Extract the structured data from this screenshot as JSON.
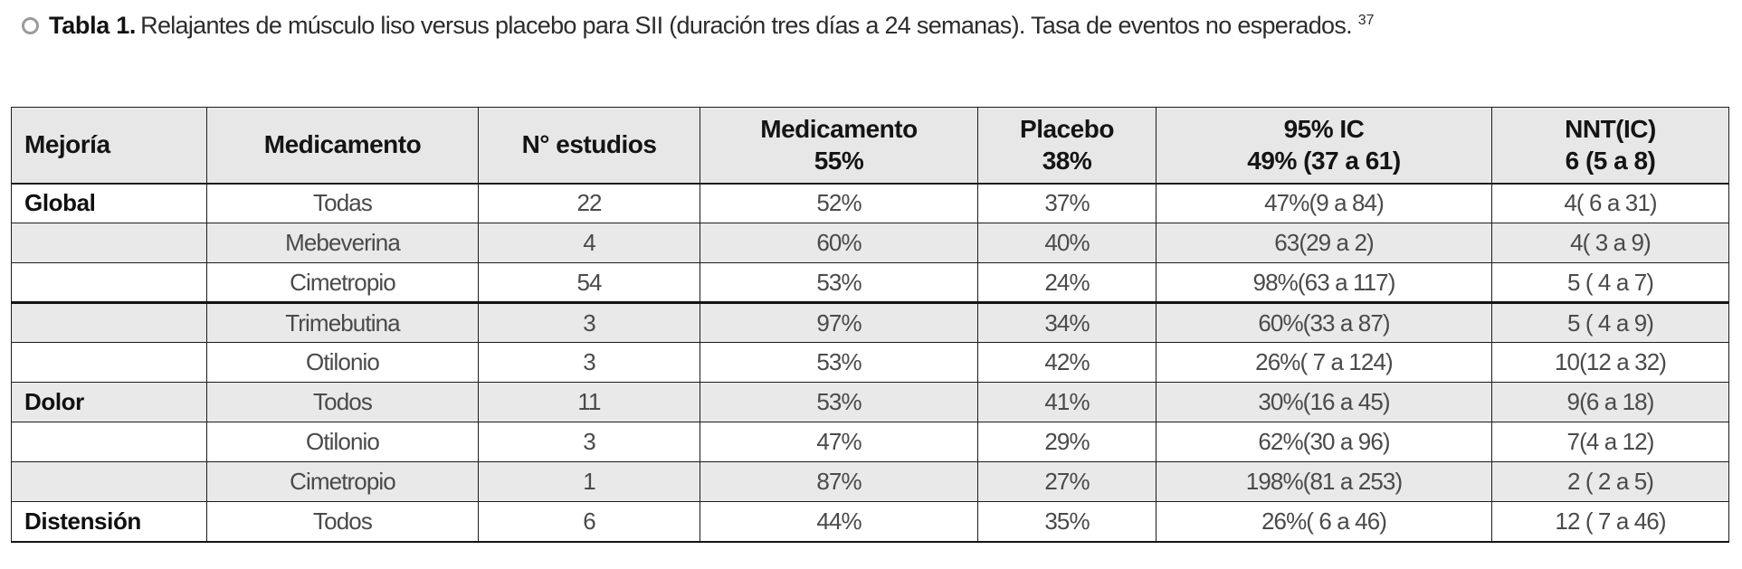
{
  "caption": {
    "icon": "circle-outline-icon",
    "label": "Tabla 1.",
    "text": "Relajantes de músculo liso versus placebo para SII (duración tres días a 24 semanas). Tasa de eventos no esperados.",
    "reference": "37"
  },
  "table": {
    "field_order": [
      "mejoria",
      "medicamento",
      "n_estudios",
      "medicamento_pct",
      "placebo_pct",
      "ic_95",
      "nnt_ic"
    ],
    "columns": [
      {
        "label": "Mejoría",
        "sub": ""
      },
      {
        "label": "Medicamento",
        "sub": ""
      },
      {
        "label": "N° estudios",
        "sub": ""
      },
      {
        "label": "Medicamento",
        "sub": "55%"
      },
      {
        "label": "Placebo",
        "sub": "38%"
      },
      {
        "label": "95% IC",
        "sub": "49% (37 a 61)"
      },
      {
        "label": "NNT(IC)",
        "sub": "6 (5 a 8)"
      }
    ],
    "rows": [
      {
        "mejoria": "Global",
        "medicamento": "Todas",
        "n_estudios": "22",
        "medicamento_pct": "52%",
        "placebo_pct": "37%",
        "ic_95": "47%(9 a 84)",
        "nnt_ic": "4( 6 a 31)",
        "shaded": false,
        "thick_bottom": false
      },
      {
        "mejoria": "",
        "medicamento": "Mebeverina",
        "n_estudios": "4",
        "medicamento_pct": "60%",
        "placebo_pct": "40%",
        "ic_95": "63(29 a 2)",
        "nnt_ic": "4( 3 a 9)",
        "shaded": true,
        "thick_bottom": false
      },
      {
        "mejoria": "",
        "medicamento": "Cimetropio",
        "n_estudios": "54",
        "medicamento_pct": "53%",
        "placebo_pct": "24%",
        "ic_95": "98%(63 a 117)",
        "nnt_ic": "5 ( 4 a 7)",
        "shaded": false,
        "thick_bottom": true
      },
      {
        "mejoria": "",
        "medicamento": "Trimebutina",
        "n_estudios": "3",
        "medicamento_pct": "97%",
        "placebo_pct": "34%",
        "ic_95": "60%(33 a 87)",
        "nnt_ic": "5 ( 4 a 9)",
        "shaded": true,
        "thick_bottom": false
      },
      {
        "mejoria": "",
        "medicamento": "Otilonio",
        "n_estudios": "3",
        "medicamento_pct": "53%",
        "placebo_pct": "42%",
        "ic_95": "26%( 7 a 124)",
        "nnt_ic": "10(12 a 32)",
        "shaded": false,
        "thick_bottom": false
      },
      {
        "mejoria": "Dolor",
        "medicamento": "Todos",
        "n_estudios": "11",
        "medicamento_pct": "53%",
        "placebo_pct": "41%",
        "ic_95": "30%(16 a 45)",
        "nnt_ic": "9(6 a 18)",
        "shaded": true,
        "thick_bottom": false
      },
      {
        "mejoria": "",
        "medicamento": "Otilonio",
        "n_estudios": "3",
        "medicamento_pct": "47%",
        "placebo_pct": "29%",
        "ic_95": "62%(30 a 96)",
        "nnt_ic": "7(4 a 12)",
        "shaded": false,
        "thick_bottom": false
      },
      {
        "mejoria": "",
        "medicamento": "Cimetropio",
        "n_estudios": "1",
        "medicamento_pct": "87%",
        "placebo_pct": "27%",
        "ic_95": "198%(81 a 253)",
        "nnt_ic": "2 ( 2 a 5)",
        "shaded": true,
        "thick_bottom": false
      },
      {
        "mejoria": "Distensión",
        "medicamento": "Todos",
        "n_estudios": "6",
        "medicamento_pct": "44%",
        "placebo_pct": "35%",
        "ic_95": "26%( 6 a 46)",
        "nnt_ic": "12 ( 7 a 46)",
        "shaded": false,
        "thick_bottom": false
      }
    ]
  },
  "colors": {
    "header_bg": "#e7e7e7",
    "zebra_bg": "#e9e9e9",
    "border": "#1c1c1c",
    "text_dark": "#141414",
    "text_body": "#4a4a4a"
  }
}
